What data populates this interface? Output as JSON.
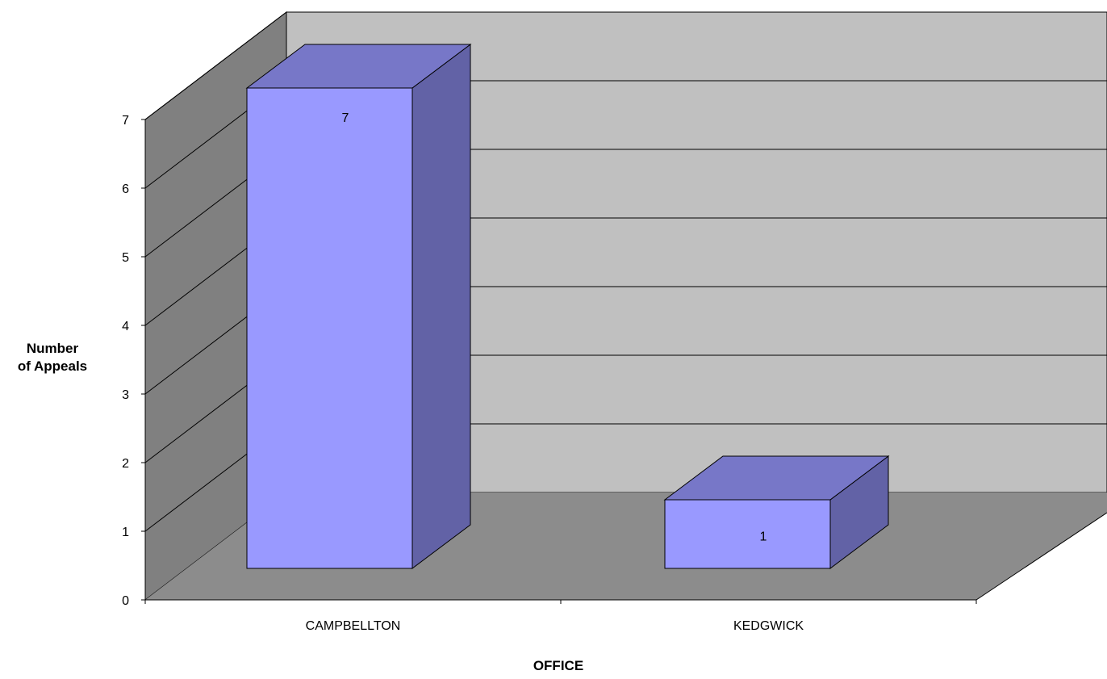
{
  "chart_data": {
    "type": "bar",
    "style": "3d-column",
    "title": "",
    "xlabel": "OFFICE",
    "ylabel_lines": [
      "Number",
      "of Appeals"
    ],
    "categories": [
      "CAMPBELLTON",
      "KEDGWICK"
    ],
    "values": [
      7,
      1
    ],
    "data_labels": [
      "7",
      "1"
    ],
    "ylim": [
      0,
      7
    ],
    "y_ticks": [
      0,
      1,
      2,
      3,
      4,
      5,
      6,
      7
    ],
    "y_tick_labels": [
      "0",
      "1",
      "2",
      "3",
      "4",
      "5",
      "6",
      "7"
    ],
    "grid": true,
    "legend": "none",
    "colors": {
      "bar_front": "#9999ff",
      "bar_top": "#7777c8",
      "bar_side": "#6262a6",
      "back_wall": "#c0c0c0",
      "side_wall": "#808080",
      "floor": "#8c8c8c",
      "grid": "#000000"
    }
  }
}
